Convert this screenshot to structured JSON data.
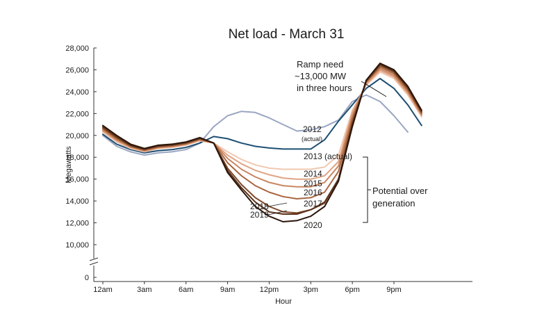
{
  "chart_data": {
    "type": "line",
    "title": "Net load - March 31",
    "xlabel": "Hour",
    "ylabel": "Megawatts",
    "x": [
      0,
      1,
      2,
      3,
      4,
      5,
      6,
      7,
      8,
      9,
      10,
      11,
      12,
      13,
      14,
      15,
      16,
      17,
      18,
      19,
      20,
      21,
      22,
      23
    ],
    "xticks": [
      {
        "x": 0,
        "label": "12am"
      },
      {
        "x": 3,
        "label": "3am"
      },
      {
        "x": 6,
        "label": "6am"
      },
      {
        "x": 9,
        "label": "9am"
      },
      {
        "x": 12,
        "label": "12pm"
      },
      {
        "x": 15,
        "label": "3pm"
      },
      {
        "x": 18,
        "label": "6pm"
      },
      {
        "x": 21,
        "label": "9pm"
      }
    ],
    "yticks": [
      "0",
      "10,000",
      "12,000",
      "14,000",
      "16,000",
      "18,000",
      "20,000",
      "22,000",
      "24,000",
      "26,000",
      "28,000"
    ],
    "ylim": [
      10000,
      28000
    ],
    "axis_break": true,
    "grid": false,
    "series": [
      {
        "name": "2012 (actual)",
        "color": "#9aa6c2",
        "values": [
          20000,
          19000,
          18500,
          18200,
          18400,
          18500,
          18700,
          19300,
          20800,
          21800,
          22200,
          22100,
          21600,
          21000,
          20400,
          20500,
          20800,
          21400,
          23100,
          23700,
          23100,
          21800,
          20300,
          null
        ]
      },
      {
        "name": "2013 (actual)",
        "color": "#1d4f73",
        "values": [
          20100,
          19200,
          18700,
          18400,
          18600,
          18700,
          18900,
          19300,
          19900,
          19700,
          19300,
          19000,
          18850,
          18750,
          18750,
          18750,
          19600,
          21300,
          22800,
          24300,
          25200,
          24300,
          22800,
          20900
        ]
      },
      {
        "name": "2014",
        "color": "#f0c8b0",
        "values": [
          20300,
          19400,
          18800,
          18500,
          18800,
          18900,
          19100,
          19500,
          19300,
          18500,
          17800,
          17300,
          17000,
          16900,
          16900,
          16900,
          17100,
          18200,
          22300,
          24600,
          25800,
          25200,
          23700,
          21700
        ]
      },
      {
        "name": "2015",
        "color": "#e0a383",
        "values": [
          20400,
          19500,
          18900,
          18550,
          18850,
          18950,
          19150,
          19550,
          19300,
          18200,
          17400,
          16800,
          16400,
          16100,
          16000,
          16000,
          16300,
          17600,
          22100,
          24700,
          25950,
          25350,
          23850,
          21800
        ]
      },
      {
        "name": "2016",
        "color": "#c98660",
        "values": [
          20500,
          19600,
          18950,
          18600,
          18900,
          19000,
          19200,
          19600,
          19300,
          17900,
          16900,
          16200,
          15700,
          15400,
          15300,
          15300,
          15700,
          17200,
          21800,
          24800,
          26100,
          25500,
          24000,
          21900
        ]
      },
      {
        "name": "2017",
        "color": "#a96640",
        "values": [
          20600,
          19700,
          19000,
          18650,
          18950,
          19050,
          19250,
          19650,
          19300,
          17500,
          16300,
          15400,
          14800,
          14400,
          14200,
          14300,
          14800,
          16700,
          21500,
          24900,
          26250,
          25650,
          24150,
          22000
        ]
      },
      {
        "name": "2018",
        "color": "#7f4a2b",
        "values": [
          20700,
          19800,
          19050,
          18700,
          19000,
          19100,
          19300,
          19700,
          19300,
          17000,
          15500,
          14300,
          13500,
          13000,
          12900,
          13200,
          13800,
          16000,
          21200,
          24950,
          26400,
          25800,
          24300,
          22100
        ]
      },
      {
        "name": "2019",
        "color": "#5a3118",
        "values": [
          20800,
          19900,
          19100,
          18750,
          19050,
          19150,
          19350,
          19750,
          19300,
          16800,
          15200,
          13900,
          13000,
          12800,
          12800,
          13200,
          13900,
          16000,
          21000,
          25000,
          26500,
          25900,
          24400,
          22200
        ]
      },
      {
        "name": "2020",
        "color": "#2a150a",
        "values": [
          20900,
          20000,
          19200,
          18800,
          19100,
          19200,
          19400,
          19800,
          19300,
          16600,
          15000,
          13500,
          12600,
          12100,
          12200,
          12600,
          13500,
          15800,
          20800,
          25050,
          26600,
          26000,
          24500,
          22300
        ]
      }
    ],
    "annotations": {
      "ramp": [
        "Ramp need",
        "~13,000 MW",
        "in three hours"
      ],
      "label_2012": [
        "2012",
        "(actual)"
      ],
      "label_2013": "2013 (actual)",
      "label_2014": "2014",
      "label_2015": "2015",
      "label_2016": "2016",
      "label_2017": "2017",
      "label_2018": "2018",
      "label_2019": "2019",
      "label_2020": "2020",
      "overgen": [
        "Potential over",
        "generation"
      ]
    }
  }
}
